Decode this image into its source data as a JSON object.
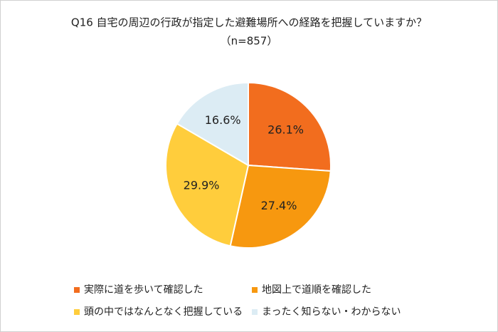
{
  "chart_data": {
    "type": "pie",
    "title": "Q16 自宅の周辺の行政が指定した避難場所への経路を把握していますか？",
    "subtitle": "（n=857）",
    "categories": [
      "実際に道を歩いて確認した",
      "地図上で道順を確認した",
      "頭の中ではなんとなく把握している",
      "まったく知らない・わからない"
    ],
    "values": [
      26.1,
      27.4,
      29.9,
      16.6
    ],
    "value_labels": [
      "26.1%",
      "27.4%",
      "29.9%",
      "16.6%"
    ],
    "colors": [
      "#f26d1e",
      "#f7980f",
      "#ffcd3c",
      "#dcecf4"
    ]
  }
}
